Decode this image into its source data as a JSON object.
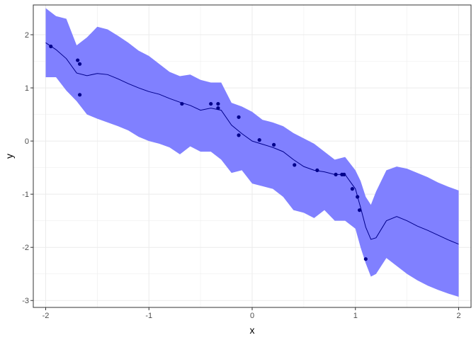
{
  "chart_data": {
    "type": "line",
    "xlabel": "x",
    "ylabel": "y",
    "xlim": [
      -2.12,
      2.12
    ],
    "ylim": [
      -3.13,
      2.56
    ],
    "x_ticks": [
      -2,
      -1,
      0,
      1,
      2
    ],
    "y_ticks": [
      -3,
      -2,
      -1,
      0,
      1,
      2
    ],
    "grid": true,
    "legend": "none",
    "colors": {
      "band": "#8080ff",
      "line": "#00008b",
      "points": "#00008b",
      "grid": "#ebebeb",
      "panel_border": "#333333"
    },
    "band": {
      "x": [
        -2.0,
        -1.9,
        -1.8,
        -1.7,
        -1.6,
        -1.5,
        -1.4,
        -1.3,
        -1.2,
        -1.1,
        -1.0,
        -0.9,
        -0.8,
        -0.7,
        -0.6,
        -0.5,
        -0.4,
        -0.3,
        -0.2,
        -0.1,
        0.0,
        0.1,
        0.2,
        0.3,
        0.4,
        0.5,
        0.6,
        0.7,
        0.8,
        0.9,
        1.0,
        1.05,
        1.1,
        1.15,
        1.2,
        1.3,
        1.4,
        1.5,
        1.6,
        1.7,
        1.8,
        1.9,
        2.0
      ],
      "upper": [
        2.5,
        2.35,
        2.3,
        1.8,
        1.95,
        2.15,
        2.1,
        1.98,
        1.85,
        1.7,
        1.6,
        1.45,
        1.3,
        1.22,
        1.25,
        1.15,
        1.1,
        1.1,
        0.72,
        0.65,
        0.55,
        0.4,
        0.35,
        0.28,
        0.15,
        0.05,
        -0.05,
        -0.2,
        -0.35,
        -0.3,
        -0.55,
        -0.75,
        -1.05,
        -1.2,
        -0.95,
        -0.55,
        -0.48,
        -0.52,
        -0.6,
        -0.68,
        -0.78,
        -0.86,
        -0.93
      ],
      "lower": [
        1.2,
        1.2,
        0.95,
        0.75,
        0.5,
        0.42,
        0.35,
        0.28,
        0.2,
        0.08,
        0.0,
        -0.05,
        -0.12,
        -0.25,
        -0.1,
        -0.2,
        -0.2,
        -0.35,
        -0.6,
        -0.55,
        -0.8,
        -0.85,
        -0.9,
        -1.05,
        -1.3,
        -1.35,
        -1.45,
        -1.3,
        -1.5,
        -1.5,
        -1.65,
        -2.0,
        -2.3,
        -2.55,
        -2.5,
        -2.2,
        -2.35,
        -2.5,
        -2.62,
        -2.72,
        -2.8,
        -2.87,
        -2.93
      ]
    },
    "fit": {
      "x": [
        -2.0,
        -1.9,
        -1.8,
        -1.7,
        -1.6,
        -1.5,
        -1.4,
        -1.3,
        -1.2,
        -1.1,
        -1.0,
        -0.9,
        -0.8,
        -0.7,
        -0.6,
        -0.5,
        -0.4,
        -0.3,
        -0.2,
        -0.1,
        0.0,
        0.1,
        0.2,
        0.3,
        0.4,
        0.5,
        0.6,
        0.7,
        0.8,
        0.9,
        1.0,
        1.05,
        1.1,
        1.15,
        1.2,
        1.3,
        1.4,
        1.5,
        1.6,
        1.7,
        1.8,
        1.9,
        2.0
      ],
      "y": [
        1.85,
        1.72,
        1.55,
        1.28,
        1.23,
        1.27,
        1.25,
        1.17,
        1.08,
        1.0,
        0.93,
        0.88,
        0.8,
        0.73,
        0.67,
        0.58,
        0.62,
        0.58,
        0.3,
        0.14,
        0.0,
        -0.06,
        -0.12,
        -0.2,
        -0.35,
        -0.48,
        -0.55,
        -0.58,
        -0.63,
        -0.63,
        -0.9,
        -1.25,
        -1.62,
        -1.85,
        -1.82,
        -1.5,
        -1.42,
        -1.5,
        -1.6,
        -1.68,
        -1.77,
        -1.86,
        -1.94
      ]
    },
    "points": {
      "x": [
        -1.95,
        -1.69,
        -1.67,
        -1.67,
        -0.68,
        -0.4,
        -0.33,
        -0.33,
        -0.13,
        -0.13,
        0.07,
        0.21,
        0.41,
        0.63,
        0.81,
        0.87,
        0.89,
        0.97,
        1.02,
        1.04,
        1.1
      ],
      "y": [
        1.78,
        1.52,
        1.45,
        0.87,
        0.7,
        0.7,
        0.7,
        0.62,
        0.45,
        0.11,
        0.02,
        -0.07,
        -0.45,
        -0.55,
        -0.63,
        -0.63,
        -0.63,
        -0.9,
        -1.05,
        -1.3,
        -2.22
      ]
    }
  }
}
